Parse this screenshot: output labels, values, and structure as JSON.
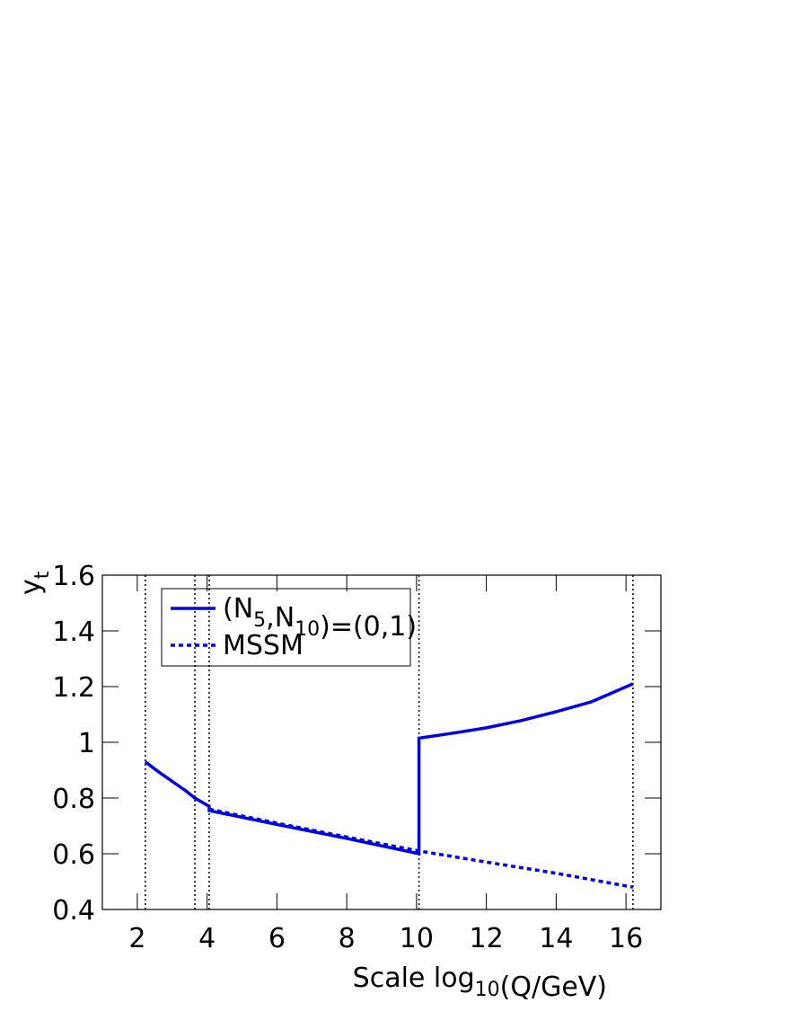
{
  "chart_data": {
    "type": "line",
    "ylabel": "y_{t}",
    "xlabel": "Scale log_{10}(Q/GeV)",
    "xlim": [
      1,
      17
    ],
    "xticks": [
      2,
      4,
      6,
      8,
      10,
      12,
      14,
      16
    ],
    "ylim": [
      0.4,
      1.6
    ],
    "yticks": [
      0.4,
      0.6,
      0.8,
      1,
      1.2,
      1.4,
      1.6
    ],
    "vlines": [
      2.23,
      3.65,
      4.06,
      10.07,
      16.2
    ],
    "series": [
      {
        "name": "(N_{5},N_{10})=(0,1)",
        "color": "#0000e0",
        "style": "solid",
        "x": [
          2.23,
          2.6,
          3.0,
          3.4,
          3.65,
          4.06,
          4.06,
          6,
          8,
          10.07,
          10.07,
          11,
          12,
          13,
          14,
          15,
          16.2
        ],
        "values": [
          0.93,
          0.895,
          0.86,
          0.825,
          0.8,
          0.77,
          0.755,
          0.705,
          0.655,
          0.6,
          1.015,
          1.032,
          1.052,
          1.078,
          1.11,
          1.145,
          1.21
        ]
      },
      {
        "name": "MSSM",
        "color": "#0000e0",
        "style": "dotted",
        "x": [
          4.06,
          6,
          8,
          10.07,
          12,
          14,
          16.2
        ],
        "values": [
          0.76,
          0.71,
          0.66,
          0.61,
          0.57,
          0.53,
          0.48
        ]
      }
    ],
    "legend": "upper left"
  }
}
